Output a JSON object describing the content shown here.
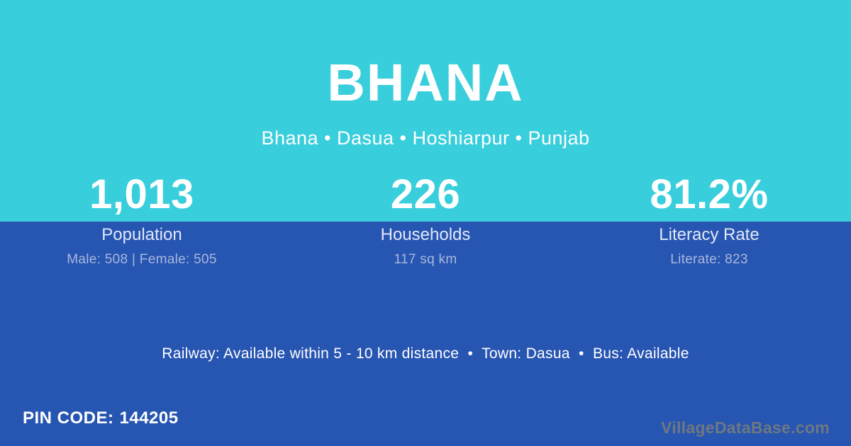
{
  "colors": {
    "top_background": "#38cedc",
    "bottom_background": "#2755b2",
    "primary_text": "#ffffff",
    "stat_label_text": "#e2e9f7",
    "stat_detail_text": "#a9b9dc",
    "watermark_text": "#6e7880"
  },
  "header": {
    "title": "BHANA",
    "breadcrumb": "Bhana • Dasua • Hoshiarpur • Punjab"
  },
  "stats": [
    {
      "value": "1,013",
      "label": "Population",
      "detail": "Male: 508 | Female: 505"
    },
    {
      "value": "226",
      "label": "Households",
      "detail": "117 sq km"
    },
    {
      "value": "81.2%",
      "label": "Literacy Rate",
      "detail": "Literate: 823"
    }
  ],
  "info_line": "Railway: Available within 5 - 10 km distance  •  Town: Dasua  •  Bus: Available",
  "footer": {
    "pin_label": "PIN CODE:",
    "pin_value": "144205",
    "watermark": "VillageDataBase.com"
  }
}
